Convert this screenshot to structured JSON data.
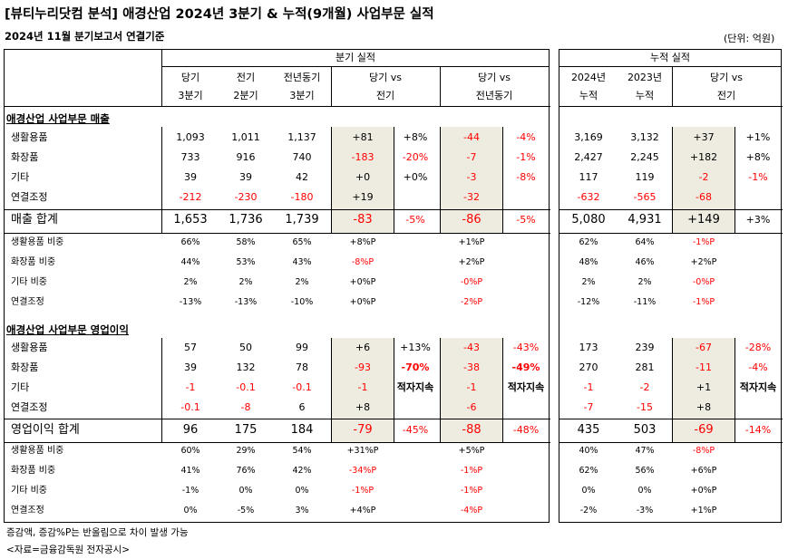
{
  "title": "[뷰티누리닷컴 분석] 애경산업 2024년 3분기 & 누적(9개월) 사업부문 실적",
  "subtitle": "2024년 11월 분기보고서 연결기준",
  "unit": "(단위: 억원)",
  "groups": {
    "quarter": "분기 실적",
    "cumulative": "누적 실적"
  },
  "headers": {
    "q3": [
      "당기",
      "3분기"
    ],
    "q2": [
      "전기",
      "2분기"
    ],
    "q3_ly": [
      "전년동기",
      "3분기"
    ],
    "vs_prev": [
      "당기 vs",
      "전기"
    ],
    "vs_ly": [
      "당기 vs",
      "전년동기"
    ],
    "cum_2024": [
      "2024년",
      "누적"
    ],
    "cum_2023": [
      "2023년",
      "누적"
    ],
    "cum_vs": [
      "당기 vs",
      "전기"
    ]
  },
  "sales_title": "애경산업 사업부문 매출",
  "sales_rows": [
    {
      "label": "생활용품",
      "q3": "1,093",
      "q2": "1,011",
      "ly": "1,137",
      "d1": "+81",
      "p1": "+8%",
      "d2": "-44",
      "p2": "-4%",
      "c24": "3,169",
      "c23": "3,132",
      "cd": "+37",
      "cp": "+1%"
    },
    {
      "label": "화장품",
      "q3": "733",
      "q2": "916",
      "ly": "740",
      "d1": "-183",
      "p1": "-20%",
      "d2": "-7",
      "p2": "-1%",
      "c24": "2,427",
      "c23": "2,245",
      "cd": "+182",
      "cp": "+8%"
    },
    {
      "label": "기타",
      "q3": "39",
      "q2": "39",
      "ly": "42",
      "d1": "+0",
      "p1": "+0%",
      "d2": "-3",
      "p2": "-8%",
      "c24": "117",
      "c23": "119",
      "cd": "-2",
      "cp": "-1%"
    },
    {
      "label": "연결조정",
      "q3": "-212",
      "q2": "-230",
      "ly": "-180",
      "d1": "+19",
      "p1": "",
      "d2": "-32",
      "p2": "",
      "c24": "-632",
      "c23": "-565",
      "cd": "-68",
      "cp": ""
    }
  ],
  "sales_total": {
    "label": "매출 합계",
    "q3": "1,653",
    "q2": "1,736",
    "ly": "1,739",
    "d1": "-83",
    "p1": "-5%",
    "d2": "-86",
    "p2": "-5%",
    "c24": "5,080",
    "c23": "4,931",
    "cd": "+149",
    "cp": "+3%"
  },
  "sales_ratio_rows": [
    {
      "label": "생활용품 비중",
      "q3": "66%",
      "q2": "58%",
      "ly": "65%",
      "d1": "+8%P",
      "d2": "+1%P",
      "c24": "62%",
      "c23": "64%",
      "cd": "-1%P"
    },
    {
      "label": "화장품 비중",
      "q3": "44%",
      "q2": "53%",
      "ly": "43%",
      "d1": "-8%P",
      "d2": "+2%P",
      "c24": "48%",
      "c23": "46%",
      "cd": "+2%P"
    },
    {
      "label": "기타 비중",
      "q3": "2%",
      "q2": "2%",
      "ly": "2%",
      "d1": "+0%P",
      "d2": "-0%P",
      "c24": "2%",
      "c23": "2%",
      "cd": "-0%P"
    },
    {
      "label": "연결조정",
      "q3": "-13%",
      "q2": "-13%",
      "ly": "-10%",
      "d1": "+0%P",
      "d2": "-2%P",
      "c24": "-12%",
      "c23": "-11%",
      "cd": "-1%P"
    }
  ],
  "op_title": "애경산업 사업부문 영업이익",
  "op_rows": [
    {
      "label": "생활용품",
      "q3": "57",
      "q2": "50",
      "ly": "99",
      "d1": "+6",
      "p1": "+13%",
      "d2": "-43",
      "p2": "-43%",
      "c24": "173",
      "c23": "239",
      "cd": "-67",
      "cp": "-28%"
    },
    {
      "label": "화장품",
      "q3": "39",
      "q2": "132",
      "ly": "78",
      "d1": "-93",
      "p1": "-70%",
      "d2": "-38",
      "p2": "-49%",
      "c24": "270",
      "c23": "281",
      "cd": "-11",
      "cp": "-4%"
    },
    {
      "label": "기타",
      "q3": "-1",
      "q2": "-0.1",
      "ly": "-0.1",
      "d1": "-1",
      "p1": "적자지속",
      "d2": "-1",
      "p2": "적자지속",
      "c24": "-1",
      "c23": "-2",
      "cd": "+1",
      "cp": "적자지속"
    },
    {
      "label": "연결조정",
      "q3": "-0.1",
      "q2": "-8",
      "ly": "6",
      "d1": "+8",
      "p1": "",
      "d2": "-6",
      "p2": "",
      "c24": "-7",
      "c23": "-15",
      "cd": "+8",
      "cp": ""
    }
  ],
  "op_total": {
    "label": "영업이익 합계",
    "q3": "96",
    "q2": "175",
    "ly": "184",
    "d1": "-79",
    "p1": "-45%",
    "d2": "-88",
    "p2": "-48%",
    "c24": "435",
    "c23": "503",
    "cd": "-69",
    "cp": "-14%"
  },
  "op_ratio_rows": [
    {
      "label": "생활용품 비중",
      "q3": "60%",
      "q2": "29%",
      "ly": "54%",
      "d1": "+31%P",
      "d2": "+5%P",
      "c24": "40%",
      "c23": "47%",
      "cd": "-8%P"
    },
    {
      "label": "화장품 비중",
      "q3": "41%",
      "q2": "76%",
      "ly": "42%",
      "d1": "-34%P",
      "d2": "-1%P",
      "c24": "62%",
      "c23": "56%",
      "cd": "+6%P"
    },
    {
      "label": "기타 비중",
      "q3": "-1%",
      "q2": "0%",
      "ly": "0%",
      "d1": "-1%P",
      "d2": "-1%P",
      "c24": "0%",
      "c23": "0%",
      "cd": "+0%P"
    },
    {
      "label": "연결조정",
      "q3": "0%",
      "q2": "-5%",
      "ly": "3%",
      "d1": "+4%P",
      "d2": "-4%P",
      "c24": "-2%",
      "c23": "-3%",
      "cd": "+1%P"
    }
  ],
  "footnote1": "증감액, 증감%P는 반올림으로 차이 발생 가능",
  "footnote2": "<자료=금융감독원 전자공시>",
  "colors": {
    "shade": "#eeece1",
    "negative": "#ff0000"
  }
}
